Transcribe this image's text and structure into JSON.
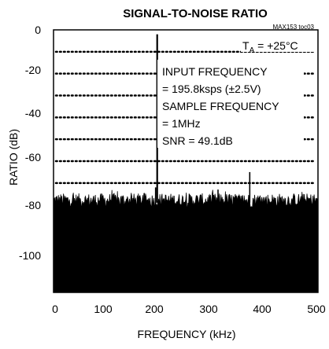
{
  "chart_data": {
    "type": "line",
    "title": "SIGNAL-TO-NOISE RATIO",
    "figure_id": "MAX153 toc03",
    "xlabel": "FREQUENCY (kHz)",
    "ylabel": "RATIO (dB)",
    "xlim": [
      0,
      500
    ],
    "ylim": [
      -120,
      0
    ],
    "x_ticks": [
      "0",
      "100",
      "200",
      "300",
      "400",
      "500"
    ],
    "y_ticks": [
      "0",
      "-20",
      "-40",
      "-60",
      "-80",
      "-100"
    ],
    "grid": "dotted horizontal",
    "annotation_temp": "T",
    "annotation_temp_sub": "A",
    "annotation_temp_value": " = +25°C",
    "annotations": [
      "INPUT FREQUENCY",
      "= 195.8ksps (±2.5V)",
      "SAMPLE FREQUENCY",
      "= 1MHz",
      "SNR = 49.1dB"
    ],
    "series": [
      {
        "noise_floor_db": -79,
        "noise_peak_db": -73,
        "spurs": [
          {
            "x": 196,
            "y": -2
          },
          {
            "x": 371,
            "y": -65
          },
          {
            "x": 193,
            "y": -72
          },
          {
            "x": 311,
            "y": -73
          }
        ]
      }
    ]
  }
}
